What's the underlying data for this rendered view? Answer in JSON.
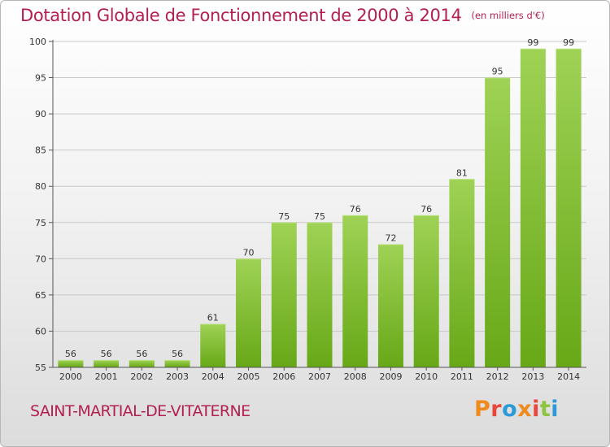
{
  "header": {
    "title": "Dotation Globale de Fonctionnement de 2000 à 2014",
    "unit": "(en milliers d'€)"
  },
  "footer": {
    "commune": "SAINT-MARTIAL-DE-VITATERNE",
    "logo": "Proxiti",
    "logo_colors": [
      "#f08a1c",
      "#e8473b",
      "#2b9ad6",
      "#f08a1c",
      "#e8473b",
      "#8cc33f",
      "#2b9ad6"
    ]
  },
  "colors": {
    "title": "#b3204f",
    "bar_light": "#9fd255",
    "bar_dark": "#67a817",
    "axis": "#555555",
    "grid": "#c8c8c8"
  },
  "chart_data": {
    "type": "bar",
    "categories": [
      "2000",
      "2001",
      "2002",
      "2003",
      "2004",
      "2005",
      "2006",
      "2007",
      "2008",
      "2009",
      "2010",
      "2011",
      "2012",
      "2013",
      "2014"
    ],
    "values": [
      56,
      56,
      56,
      56,
      61,
      70,
      75,
      75,
      76,
      72,
      76,
      81,
      95,
      99,
      99
    ],
    "data_labels": [
      "56",
      "56",
      "56",
      "56",
      "61",
      "70",
      "75",
      "75",
      "76",
      "72",
      "76",
      "81",
      "95",
      "99",
      "99"
    ],
    "title": "Dotation Globale de Fonctionnement de 2000 à 2014",
    "xlabel": "",
    "ylabel": "",
    "ylim": [
      55,
      100
    ],
    "yticks": [
      55,
      60,
      65,
      70,
      75,
      80,
      85,
      90,
      95,
      100
    ],
    "grid": true,
    "legend": "none"
  }
}
